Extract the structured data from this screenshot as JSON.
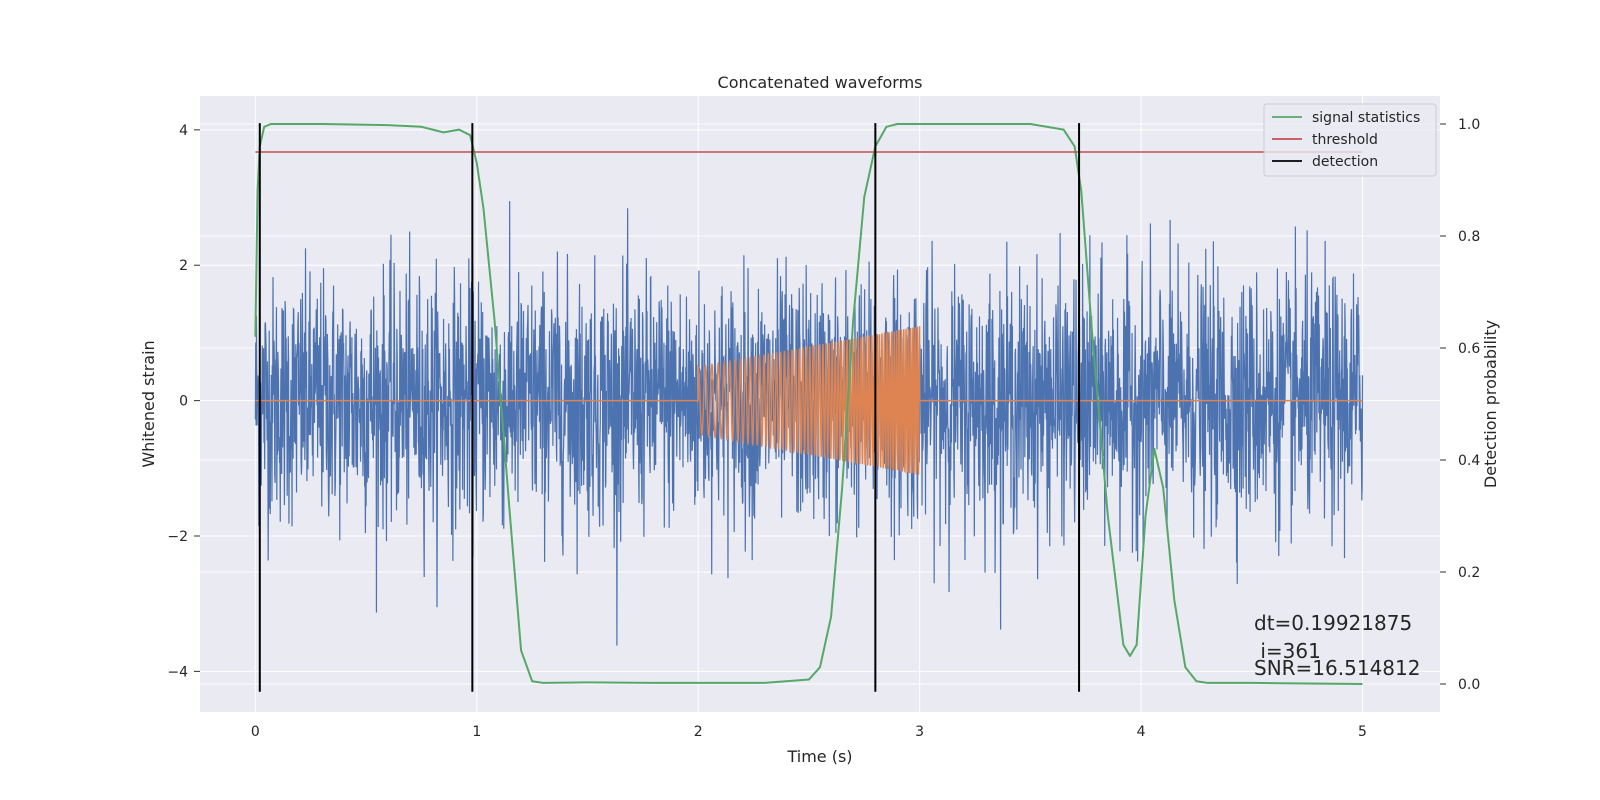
{
  "chart_data": {
    "type": "line",
    "title": "Concatenated waveforms",
    "xlabel": "Time (s)",
    "ylabel": "Whitened strain",
    "y2label": "Detection probability",
    "xlim": [
      -0.25,
      5.35
    ],
    "ylim": [
      -4.6,
      4.5
    ],
    "y2lim": [
      -0.05,
      1.05
    ],
    "x_ticks": [
      "0",
      "1",
      "2",
      "3",
      "4",
      "5"
    ],
    "y_ticks": [
      "−4",
      "−2",
      "0",
      "2",
      "4"
    ],
    "y2_ticks": [
      "0.0",
      "0.2",
      "0.4",
      "0.6",
      "0.8",
      "1.0"
    ],
    "grid": true,
    "legend_position": "top-right",
    "colors": {
      "background": "#eaeaf2",
      "grid": "#ffffff",
      "strain": "#4c72b0",
      "injection": "#dd8452",
      "signal_statistics": "#55a868",
      "threshold": "#c44e52",
      "detection": "#000000"
    },
    "series": [
      {
        "name": "signal statistics",
        "axis": "right",
        "x": [
          0.0,
          0.01,
          0.02,
          0.04,
          0.07,
          0.1,
          0.3,
          0.6,
          0.75,
          0.85,
          0.92,
          0.97,
          1.0,
          1.03,
          1.08,
          1.15,
          1.2,
          1.25,
          1.3,
          1.5,
          1.8,
          2.0,
          2.3,
          2.5,
          2.55,
          2.6,
          2.65,
          2.7,
          2.75,
          2.8,
          2.85,
          2.9,
          3.0,
          3.5,
          3.65,
          3.7,
          3.73,
          3.78,
          3.85,
          3.92,
          3.95,
          3.98,
          4.02,
          4.06,
          4.1,
          4.15,
          4.2,
          4.25,
          4.3,
          4.5,
          5.0
        ],
        "y": [
          0.62,
          0.88,
          0.96,
          0.995,
          1.0,
          1.0,
          1.0,
          0.998,
          0.995,
          0.985,
          0.99,
          0.98,
          0.93,
          0.85,
          0.65,
          0.3,
          0.06,
          0.005,
          0.002,
          0.003,
          0.002,
          0.002,
          0.002,
          0.008,
          0.03,
          0.12,
          0.35,
          0.65,
          0.87,
          0.96,
          0.995,
          1.0,
          1.0,
          1.0,
          0.99,
          0.96,
          0.88,
          0.62,
          0.3,
          0.07,
          0.05,
          0.07,
          0.3,
          0.42,
          0.35,
          0.15,
          0.03,
          0.005,
          0.002,
          0.002,
          0.0
        ]
      },
      {
        "name": "threshold",
        "axis": "right",
        "x": [
          0.0,
          5.0
        ],
        "y": [
          0.95,
          0.95
        ]
      },
      {
        "name": "detection",
        "axis": "left",
        "x": [
          0.02,
          0.98,
          2.8,
          3.72
        ],
        "y_range": [
          -4.3,
          4.1
        ]
      }
    ],
    "strain": {
      "x_range": [
        0.0,
        5.0
      ],
      "typical_amplitude": 0.9,
      "max_amplitude": 3.8
    },
    "injection": {
      "start": 2.0,
      "end": 3.0,
      "amplitude_start": 0.5,
      "amplitude_end": 1.1
    },
    "annotations": [
      "dt=0.19921875",
      " i=361",
      "SNR=16.514812"
    ]
  }
}
